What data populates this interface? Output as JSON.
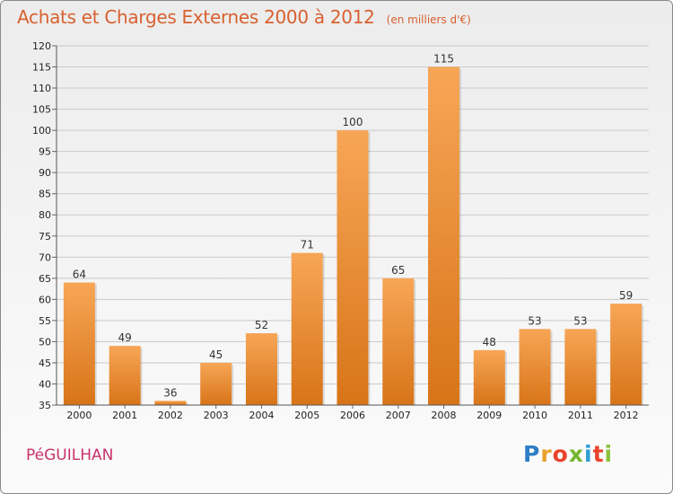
{
  "header": {
    "title": "Achats et Charges Externes 2000 à 2012",
    "unit": "(en milliers d'€)"
  },
  "footer": {
    "town": "PéGUILHAN",
    "brand_letters": [
      "P",
      "r",
      "o",
      "x",
      "i",
      "t",
      "i"
    ],
    "brand_colors": [
      "#2e7ec6",
      "#e8a12c",
      "#e8432c",
      "#74b72e",
      "#2e9ed6",
      "#e8432c",
      "#8ac23a"
    ]
  },
  "colors": {
    "bar_light": "#f7a656",
    "bar_dark": "#d87418",
    "grid": "#c9c9c9",
    "axis_text": "#222222"
  },
  "chart_data": {
    "type": "bar",
    "title": "Achats et Charges Externes 2000 à 2012",
    "unit_label": "(en milliers d'€)",
    "categories": [
      "2000",
      "2001",
      "2002",
      "2003",
      "2004",
      "2005",
      "2006",
      "2007",
      "2008",
      "2009",
      "2010",
      "2011",
      "2012"
    ],
    "values": [
      64,
      49,
      36,
      45,
      52,
      71,
      100,
      65,
      115,
      48,
      53,
      53,
      59
    ],
    "ylim": [
      35,
      120
    ],
    "yticks": [
      35,
      40,
      45,
      50,
      55,
      60,
      65,
      70,
      75,
      80,
      85,
      90,
      95,
      100,
      105,
      110,
      115,
      120
    ],
    "grid": true,
    "data_labels": true
  }
}
